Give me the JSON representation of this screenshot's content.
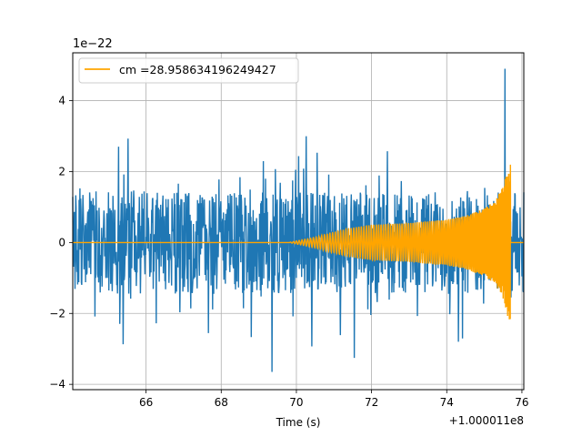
{
  "chart_data": {
    "type": "line",
    "title": "",
    "xlabel": "Time (s)",
    "ylabel": "",
    "y_scale_label": "1e−22",
    "x_offset_label": "+1.000011e8",
    "xlim": [
      64.05,
      76.05
    ],
    "ylim": [
      -4.15,
      5.35
    ],
    "xticks": [
      66,
      68,
      70,
      72,
      74,
      76
    ],
    "xtick_labels": [
      "66",
      "68",
      "70",
      "72",
      "74",
      "76"
    ],
    "yticks": [
      -4,
      -2,
      0,
      2,
      4
    ],
    "ytick_labels": [
      "−4",
      "−2",
      "0",
      "2",
      "4"
    ],
    "grid": true,
    "legend_position": "top-left",
    "series": [
      {
        "name": "",
        "color": "#1f77b4",
        "description_kind": "noise",
        "x_range": [
          64.05,
          76.05
        ],
        "typical_amplitude": 1.7,
        "peak_max": 4.9,
        "peak_max_x": 75.55,
        "peak_min": -3.65,
        "peak_min_x": 69.35
      },
      {
        "name": "cm =28.958634196249427",
        "color": "#ffa500",
        "description_kind": "chirp",
        "onset_x": 69.8,
        "merger_x": 75.7,
        "end_x": 76.05,
        "envelope": [
          [
            69.8,
            0.0
          ],
          [
            70.5,
            0.15
          ],
          [
            71.0,
            0.3
          ],
          [
            71.5,
            0.42
          ],
          [
            72.0,
            0.5
          ],
          [
            73.0,
            0.55
          ],
          [
            74.0,
            0.65
          ],
          [
            74.5,
            0.75
          ],
          [
            75.0,
            0.95
          ],
          [
            75.3,
            1.2
          ],
          [
            75.5,
            1.6
          ],
          [
            75.65,
            2.2
          ],
          [
            75.7,
            2.2
          ]
        ]
      }
    ]
  },
  "colors": {
    "strain": "#1f77b4",
    "template": "#ffa500",
    "grid": "#b0b0b0",
    "axes": "#000000"
  }
}
